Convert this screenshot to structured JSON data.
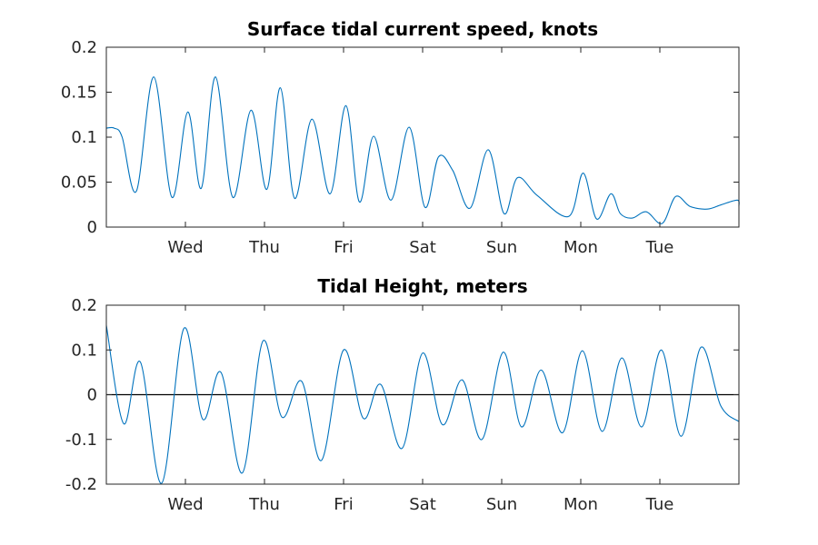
{
  "chart_data": [
    {
      "type": "line",
      "title": "Surface tidal current speed, knots",
      "xlabel": "",
      "ylabel": "",
      "x_range_days": [
        0,
        8
      ],
      "x_ticks": [
        "Wed",
        "Thu",
        "Fri",
        "Sat",
        "Sun",
        "Mon",
        "Tue"
      ],
      "x_tick_days": [
        1,
        2,
        3,
        4,
        5,
        6,
        7
      ],
      "ylim": [
        0,
        0.2
      ],
      "y_ticks": [
        0,
        0.05,
        0.1,
        0.15,
        0.2
      ],
      "y_tick_labels": [
        "0",
        "0.05",
        "0.1",
        "0.15",
        "0.2"
      ],
      "grid": false,
      "series": [
        {
          "color": "#0072bd",
          "x_days": [
            0,
            0.1,
            0.2,
            0.38,
            0.6,
            0.83,
            1.03,
            1.2,
            1.38,
            1.6,
            1.83,
            2.03,
            2.2,
            2.38,
            2.6,
            2.83,
            3.03,
            3.2,
            3.38,
            3.6,
            3.83,
            4.03,
            4.2,
            4.38,
            4.6,
            4.83,
            5.03,
            5.2,
            5.45,
            5.85,
            6.03,
            6.2,
            6.38,
            6.5,
            6.65,
            6.83,
            7.03,
            7.2,
            7.38,
            7.6,
            7.78,
            7.98,
            8.0
          ],
          "y_values": [
            0.11,
            0.11,
            0.1,
            0.04,
            0.167,
            0.033,
            0.128,
            0.043,
            0.167,
            0.033,
            0.13,
            0.042,
            0.155,
            0.032,
            0.12,
            0.037,
            0.135,
            0.028,
            0.101,
            0.03,
            0.111,
            0.022,
            0.078,
            0.063,
            0.021,
            0.086,
            0.015,
            0.055,
            0.035,
            0.012,
            0.06,
            0.009,
            0.037,
            0.015,
            0.01,
            0.017,
            0.004,
            0.034,
            0.023,
            0.02,
            0.025,
            0.03,
            0.023
          ]
        }
      ]
    },
    {
      "type": "line",
      "title": "Tidal Height, meters",
      "xlabel": "",
      "ylabel": "",
      "x_range_days": [
        0,
        8
      ],
      "x_ticks": [
        "Wed",
        "Thu",
        "Fri",
        "Sat",
        "Sun",
        "Mon",
        "Tue"
      ],
      "x_tick_days": [
        1,
        2,
        3,
        4,
        5,
        6,
        7
      ],
      "ylim": [
        -0.2,
        0.2
      ],
      "y_ticks": [
        -0.2,
        -0.1,
        0,
        0.1,
        0.2
      ],
      "y_tick_labels": [
        "-0.2",
        "-0.1",
        "0",
        "0.1",
        "0.2"
      ],
      "zero_line": true,
      "grid": false,
      "series": [
        {
          "color": "#0072bd",
          "x_days": [
            0,
            0.22,
            0.43,
            0.7,
            0.98,
            1.22,
            1.45,
            1.72,
            1.98,
            2.22,
            2.47,
            2.72,
            3.0,
            3.25,
            3.47,
            3.74,
            4.0,
            4.25,
            4.5,
            4.75,
            5.02,
            5.25,
            5.5,
            5.77,
            6.02,
            6.27,
            6.52,
            6.77,
            7.02,
            7.27,
            7.52,
            7.77,
            8.0
          ],
          "y_values": [
            0.155,
            -0.065,
            0.073,
            -0.198,
            0.148,
            -0.055,
            0.05,
            -0.175,
            0.12,
            -0.05,
            0.03,
            -0.147,
            0.1,
            -0.053,
            0.023,
            -0.12,
            0.093,
            -0.067,
            0.033,
            -0.1,
            0.095,
            -0.072,
            0.055,
            -0.085,
            0.098,
            -0.082,
            0.082,
            -0.072,
            0.1,
            -0.093,
            0.106,
            -0.025,
            -0.06
          ]
        }
      ]
    }
  ]
}
